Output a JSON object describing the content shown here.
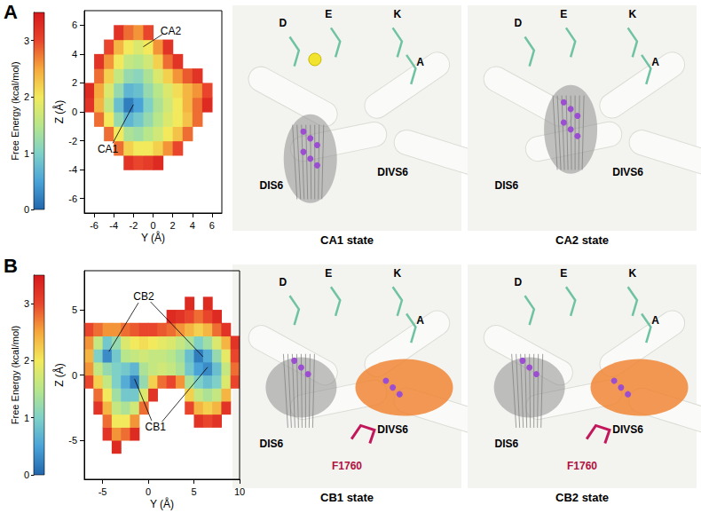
{
  "panel_labels": [
    "A",
    "B"
  ],
  "chart_data": [
    {
      "type": "heatmap",
      "x_label": "Y (Å)",
      "y_label": "Z (Å)",
      "xlim": [
        -7,
        7
      ],
      "xticks": [
        -6,
        -4,
        -2,
        0,
        2,
        4,
        6
      ],
      "ylim": [
        -7,
        7
      ],
      "yticks": [
        -6,
        -4,
        -2,
        0,
        2,
        4,
        6
      ],
      "grid": false,
      "x": [
        -6.5,
        -5.5,
        -4.5,
        -3.5,
        -2.5,
        -1.5,
        -0.5,
        0.5,
        1.5,
        2.5,
        3.5,
        4.5,
        5.5,
        6.5
      ],
      "y": [
        -6.5,
        -5.5,
        -4.5,
        -3.5,
        -2.5,
        -1.5,
        -0.5,
        0.5,
        1.5,
        2.5,
        3.5,
        4.5,
        5.5,
        6.5
      ],
      "free_energy": [
        [
          null,
          null,
          null,
          null,
          null,
          null,
          null,
          null,
          null,
          null,
          null,
          null,
          null,
          null
        ],
        [
          null,
          null,
          null,
          null,
          null,
          null,
          null,
          null,
          null,
          null,
          null,
          null,
          null,
          null
        ],
        [
          null,
          null,
          null,
          null,
          null,
          null,
          null,
          null,
          null,
          null,
          null,
          null,
          null,
          null
        ],
        [
          null,
          null,
          null,
          null,
          3.2,
          3.0,
          3.1,
          3.3,
          null,
          null,
          null,
          null,
          null,
          null
        ],
        [
          null,
          null,
          null,
          2.8,
          2.2,
          2.0,
          2.0,
          2.2,
          2.6,
          3.0,
          null,
          null,
          null,
          null
        ],
        [
          null,
          null,
          2.8,
          2.0,
          1.4,
          1.3,
          1.5,
          1.7,
          2.0,
          2.3,
          2.8,
          null,
          null,
          null
        ],
        [
          null,
          2.8,
          2.0,
          1.2,
          0.7,
          0.9,
          1.2,
          1.5,
          1.8,
          2.0,
          2.3,
          2.8,
          null,
          null
        ],
        [
          3.2,
          2.4,
          1.6,
          0.8,
          0.2,
          0.5,
          1.0,
          1.4,
          1.7,
          2.0,
          2.4,
          2.8,
          3.3,
          null
        ],
        [
          3.3,
          2.5,
          1.8,
          1.2,
          0.7,
          0.8,
          1.2,
          1.5,
          1.8,
          2.1,
          2.4,
          2.6,
          3.0,
          null
        ],
        [
          null,
          2.8,
          2.2,
          1.6,
          1.2,
          1.1,
          1.4,
          1.8,
          2.2,
          2.6,
          2.9,
          3.2,
          null,
          null
        ],
        [
          null,
          3.2,
          2.6,
          2.0,
          1.6,
          1.5,
          1.7,
          2.2,
          2.8,
          3.2,
          null,
          null,
          null,
          null
        ],
        [
          null,
          null,
          3.0,
          2.4,
          2.0,
          1.8,
          2.0,
          2.6,
          3.2,
          null,
          null,
          null,
          null,
          null
        ],
        [
          null,
          null,
          null,
          3.2,
          2.8,
          2.6,
          3.0,
          null,
          null,
          null,
          null,
          null,
          null,
          null
        ],
        [
          null,
          null,
          null,
          null,
          null,
          null,
          null,
          null,
          null,
          null,
          null,
          null,
          null,
          null
        ]
      ],
      "colorbar": {
        "label": "Free Energy (kcal/mol)",
        "range": [
          0,
          3.5
        ],
        "ticks": [
          0,
          1,
          2,
          3
        ],
        "colors": [
          "#2166ac",
          "#4aa3d8",
          "#7fd1c8",
          "#b8e68a",
          "#f2ea5c",
          "#f6a83c",
          "#e8452c",
          "#d7191c"
        ]
      },
      "annotations": [
        {
          "text": "CA1",
          "points": [
            [
              -2,
              0.5
            ]
          ]
        },
        {
          "text": "CA2",
          "points": [
            [
              -1,
              4.5
            ]
          ]
        }
      ],
      "structure_panels": [
        {
          "title": "CA1 state",
          "labels": [
            "D",
            "E",
            "K",
            "A",
            "DIS6",
            "DIVS6"
          ]
        },
        {
          "title": "CA2 state",
          "labels": [
            "D",
            "E",
            "K",
            "A",
            "DIS6",
            "DIVS6"
          ]
        }
      ]
    },
    {
      "type": "heatmap",
      "x_label": "Y (Å)",
      "y_label": "Z (Å)",
      "xlim": [
        -7,
        10
      ],
      "xticks": [
        -5,
        0,
        5,
        10
      ],
      "ylim": [
        -8,
        8
      ],
      "yticks": [
        -5,
        0,
        5
      ],
      "grid": false,
      "x": [
        -6.5,
        -5.5,
        -4.5,
        -3.5,
        -2.5,
        -1.5,
        -0.5,
        0.5,
        1.5,
        2.5,
        3.5,
        4.5,
        5.5,
        6.5,
        7.5,
        8.5,
        9.5
      ],
      "y": [
        -7.5,
        -6.5,
        -5.5,
        -4.5,
        -3.5,
        -2.5,
        -1.5,
        -0.5,
        0.5,
        1.5,
        2.5,
        3.5,
        4.5,
        5.5,
        6.5,
        7.5
      ],
      "free_energy": [
        [
          null,
          null,
          null,
          null,
          null,
          null,
          null,
          null,
          null,
          null,
          null,
          null,
          null,
          null,
          null,
          null,
          null
        ],
        [
          null,
          null,
          null,
          null,
          null,
          null,
          null,
          null,
          null,
          null,
          null,
          null,
          null,
          null,
          null,
          null,
          null
        ],
        [
          null,
          null,
          null,
          3.3,
          null,
          null,
          null,
          null,
          null,
          null,
          null,
          null,
          null,
          null,
          null,
          null,
          null
        ],
        [
          null,
          null,
          3.2,
          2.6,
          2.8,
          3.3,
          null,
          null,
          null,
          null,
          null,
          null,
          null,
          null,
          null,
          null,
          null
        ],
        [
          null,
          null,
          2.8,
          2.0,
          2.0,
          2.6,
          null,
          null,
          null,
          null,
          null,
          null,
          3.2,
          3.0,
          3.2,
          null,
          null
        ],
        [
          null,
          3.2,
          2.4,
          1.6,
          1.4,
          1.7,
          2.8,
          null,
          null,
          null,
          null,
          3.0,
          2.4,
          2.2,
          2.4,
          3.2,
          null
        ],
        [
          null,
          2.8,
          2.0,
          1.3,
          0.9,
          0.9,
          1.8,
          3.2,
          null,
          null,
          null,
          2.2,
          1.6,
          1.4,
          1.6,
          2.4,
          null
        ],
        [
          3.0,
          2.2,
          1.6,
          1.0,
          0.6,
          0.2,
          1.2,
          2.2,
          2.8,
          3.0,
          2.6,
          1.4,
          1.0,
          0.8,
          1.0,
          1.8,
          3.0
        ],
        [
          2.6,
          1.6,
          1.2,
          1.0,
          0.9,
          0.7,
          1.4,
          1.6,
          1.7,
          1.6,
          1.4,
          0.9,
          0.5,
          0.3,
          0.8,
          1.6,
          2.8
        ],
        [
          2.4,
          1.0,
          0.3,
          0.9,
          1.5,
          1.6,
          1.7,
          1.6,
          1.6,
          1.5,
          1.3,
          0.8,
          0.2,
          0.6,
          1.2,
          1.9,
          3.0
        ],
        [
          2.6,
          1.6,
          0.9,
          1.2,
          1.8,
          2.0,
          2.1,
          2.0,
          1.9,
          1.8,
          1.6,
          1.4,
          1.0,
          1.3,
          1.8,
          2.4,
          3.2
        ],
        [
          3.0,
          2.8,
          2.6,
          2.6,
          2.8,
          2.9,
          3.0,
          3.0,
          2.9,
          2.8,
          2.6,
          2.4,
          2.2,
          2.4,
          2.8,
          3.2,
          null
        ],
        [
          null,
          null,
          null,
          null,
          null,
          null,
          null,
          null,
          null,
          3.3,
          3.2,
          3.0,
          2.8,
          3.0,
          3.3,
          null,
          null
        ],
        [
          null,
          null,
          null,
          null,
          null,
          null,
          null,
          null,
          null,
          null,
          null,
          3.3,
          null,
          3.3,
          null,
          null,
          null
        ],
        [
          null,
          null,
          null,
          null,
          null,
          null,
          null,
          null,
          null,
          null,
          null,
          null,
          null,
          null,
          null,
          null,
          null
        ],
        [
          null,
          null,
          null,
          null,
          null,
          null,
          null,
          null,
          null,
          null,
          null,
          null,
          null,
          null,
          null,
          null,
          null
        ]
      ],
      "colorbar": {
        "label": "Free Energy (kcal/mol)",
        "range": [
          0,
          3.5
        ],
        "ticks": [
          0,
          1,
          2,
          3
        ],
        "colors": [
          "#2166ac",
          "#4aa3d8",
          "#7fd1c8",
          "#b8e68a",
          "#f2ea5c",
          "#f6a83c",
          "#e8452c",
          "#d7191c"
        ]
      },
      "annotations": [
        {
          "text": "CB2",
          "points": [
            [
              -4.3,
              1.8
            ],
            [
              6,
              1.4
            ]
          ]
        },
        {
          "text": "CB1",
          "points": [
            [
              -1.5,
              -0.3
            ],
            [
              6.5,
              0.6
            ]
          ]
        }
      ],
      "structure_panels": [
        {
          "title": "CB1 state",
          "labels": [
            "D",
            "E",
            "K",
            "A",
            "DIS6",
            "DIVS6",
            "F1760"
          ]
        },
        {
          "title": "CB2 state",
          "labels": [
            "D",
            "E",
            "K",
            "A",
            "DIS6",
            "DIVS6",
            "F1760"
          ]
        }
      ]
    }
  ]
}
